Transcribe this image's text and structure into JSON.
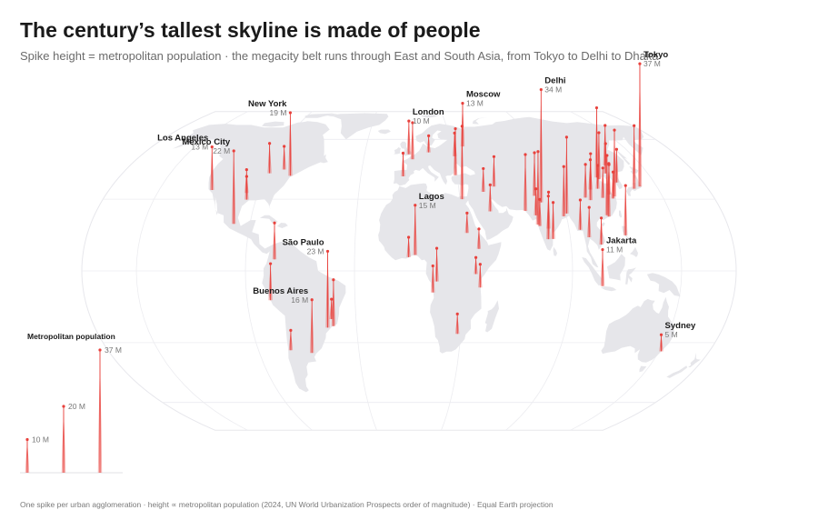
{
  "title": "The century’s tallest skyline is made of people",
  "subtitle": "Spike height = metropolitan population · the megacity belt runs through East and South Asia, from Tokyo to Delhi to Dhaka",
  "footnote": "One spike per urban agglomeration · height ∝ metropolitan population (2024, UN World Urbanization Prospects order of magnitude) · Equal Earth projection",
  "colors": {
    "spike": "#e8413c",
    "land": "#e6e6ea",
    "graticule": "#ececf0"
  },
  "legend": {
    "title": "Metropolitan population",
    "items": [
      {
        "value": 10,
        "label": "10 M"
      },
      {
        "value": 20,
        "label": "20 M"
      },
      {
        "value": 37,
        "label": "37 M"
      }
    ]
  },
  "labeled_cities": [
    {
      "name": "Tokyo",
      "label": "37 M",
      "population_m": 37,
      "lon": 139.7,
      "lat": 35.7
    },
    {
      "name": "Delhi",
      "label": "34 M",
      "population_m": 34,
      "lon": 77.2,
      "lat": 28.6
    },
    {
      "name": "Moscow",
      "label": "13 M",
      "population_m": 13,
      "lon": 37.6,
      "lat": 55.8
    },
    {
      "name": "London",
      "label": "10 M",
      "population_m": 10,
      "lon": -0.1,
      "lat": 51.5
    },
    {
      "name": "New York",
      "label": "19 M",
      "population_m": 19,
      "lon": -74.0,
      "lat": 40.7
    },
    {
      "name": "Los Angeles",
      "label": "13 M",
      "population_m": 13,
      "lon": -118.2,
      "lat": 34.1
    },
    {
      "name": "Mexico City",
      "label": "22 M",
      "population_m": 22,
      "lon": -99.1,
      "lat": 19.4
    },
    {
      "name": "Lagos",
      "label": "15 M",
      "population_m": 15,
      "lon": 3.4,
      "lat": 6.5
    },
    {
      "name": "São Paulo",
      "label": "23 M",
      "population_m": 23,
      "lon": -46.6,
      "lat": -23.5
    },
    {
      "name": "Buenos Aires",
      "label": "16 M",
      "population_m": 16,
      "lon": -58.4,
      "lat": -34.6
    },
    {
      "name": "Jakarta",
      "label": "11 M",
      "population_m": 11,
      "lon": 106.8,
      "lat": -6.2
    },
    {
      "name": "Sydney",
      "label": "5 M",
      "population_m": 5,
      "lon": 151.2,
      "lat": -33.9
    }
  ],
  "other_cities": [
    {
      "population_m": 20,
      "lon": 121.5,
      "lat": 31.2
    },
    {
      "population_m": 21,
      "lon": 116.4,
      "lat": 39.9
    },
    {
      "population_m": 22,
      "lon": 72.9,
      "lat": 19.1
    },
    {
      "population_m": 23,
      "lon": 90.4,
      "lat": 23.8
    },
    {
      "population_m": 17,
      "lon": 67.0,
      "lat": 24.9
    },
    {
      "population_m": 22,
      "lon": 31.2,
      "lat": 30.0
    },
    {
      "population_m": 19,
      "lon": 135.5,
      "lat": 34.7
    },
    {
      "population_m": 15,
      "lon": 88.4,
      "lat": 22.6
    },
    {
      "population_m": 15,
      "lon": 121.0,
      "lat": 14.6
    },
    {
      "population_m": 18,
      "lon": 113.3,
      "lat": 23.1
    },
    {
      "population_m": 16,
      "lon": 114.1,
      "lat": 22.5
    },
    {
      "population_m": 14,
      "lon": 28.98,
      "lat": 41.0
    },
    {
      "population_m": 14,
      "lon": 106.6,
      "lat": 29.6
    },
    {
      "population_m": 14,
      "lon": 117.2,
      "lat": 39.1
    },
    {
      "population_m": 13,
      "lon": 74.3,
      "lat": 31.5
    },
    {
      "population_m": 13,
      "lon": 77.6,
      "lat": 13.0
    },
    {
      "population_m": 11,
      "lon": 80.3,
      "lat": 13.1
    },
    {
      "population_m": 11,
      "lon": 78.5,
      "lat": 17.4
    },
    {
      "population_m": 9,
      "lon": 100.5,
      "lat": 13.8
    },
    {
      "population_m": 9,
      "lon": 51.4,
      "lat": 35.7
    },
    {
      "population_m": 8,
      "lon": 106.7,
      "lat": 10.8
    },
    {
      "population_m": 9,
      "lon": 114.3,
      "lat": 30.6
    },
    {
      "population_m": 10,
      "lon": 104.1,
      "lat": 30.7
    },
    {
      "population_m": 9,
      "lon": 108.9,
      "lat": 34.3
    },
    {
      "population_m": 10,
      "lon": 126.98,
      "lat": 37.57
    },
    {
      "population_m": 12,
      "lon": 126.6,
      "lat": 45.8
    },
    {
      "population_m": 9,
      "lon": 123.4,
      "lat": 41.8
    },
    {
      "population_m": 8,
      "lon": 120.2,
      "lat": 30.3
    },
    {
      "population_m": 9,
      "lon": 118.8,
      "lat": 32.1
    },
    {
      "population_m": 7,
      "lon": 113.6,
      "lat": 34.7
    },
    {
      "population_m": 9,
      "lon": 96.2,
      "lat": 16.9
    },
    {
      "population_m": 8,
      "lon": 73.8,
      "lat": 18.5
    },
    {
      "population_m": 8,
      "lon": 72.6,
      "lat": 23.0
    },
    {
      "population_m": 7,
      "lon": 44.4,
      "lat": 33.3
    },
    {
      "population_m": 8,
      "lon": 46.7,
      "lat": 24.7
    },
    {
      "population_m": 10,
      "lon": 15.3,
      "lat": -4.3
    },
    {
      "population_m": 8,
      "lon": 13.2,
      "lat": -8.8
    },
    {
      "population_m": 7,
      "lon": 39.3,
      "lat": -6.8
    },
    {
      "population_m": 5,
      "lon": 36.8,
      "lat": -1.3
    },
    {
      "population_m": 6,
      "lon": 38.7,
      "lat": 9.0
    },
    {
      "population_m": 6,
      "lon": 32.5,
      "lat": 15.6
    },
    {
      "population_m": 6,
      "lon": 28.0,
      "lat": -26.2
    },
    {
      "population_m": 6,
      "lon": -0.2,
      "lat": 5.6
    },
    {
      "population_m": 11,
      "lon": 2.35,
      "lat": 48.86
    },
    {
      "population_m": 7,
      "lon": -3.7,
      "lat": 40.4
    },
    {
      "population_m": 5,
      "lon": 13.4,
      "lat": 52.5
    },
    {
      "population_m": 7,
      "lon": 30.5,
      "lat": 50.4
    },
    {
      "population_m": 9,
      "lon": -87.6,
      "lat": 41.9
    },
    {
      "population_m": 7,
      "lon": -95.4,
      "lat": 29.8
    },
    {
      "population_m": 7,
      "lon": -96.8,
      "lat": 32.8
    },
    {
      "population_m": 7,
      "lon": -79.4,
      "lat": 43.7
    },
    {
      "population_m": 11,
      "lon": -77.0,
      "lat": -12.0
    },
    {
      "population_m": 11,
      "lon": -74.1,
      "lat": 4.7
    },
    {
      "population_m": 6,
      "lon": -70.7,
      "lat": -33.4
    },
    {
      "population_m": 14,
      "lon": -43.2,
      "lat": -22.9
    },
    {
      "population_m": 6,
      "lon": -43.9,
      "lat": -19.9
    }
  ]
}
